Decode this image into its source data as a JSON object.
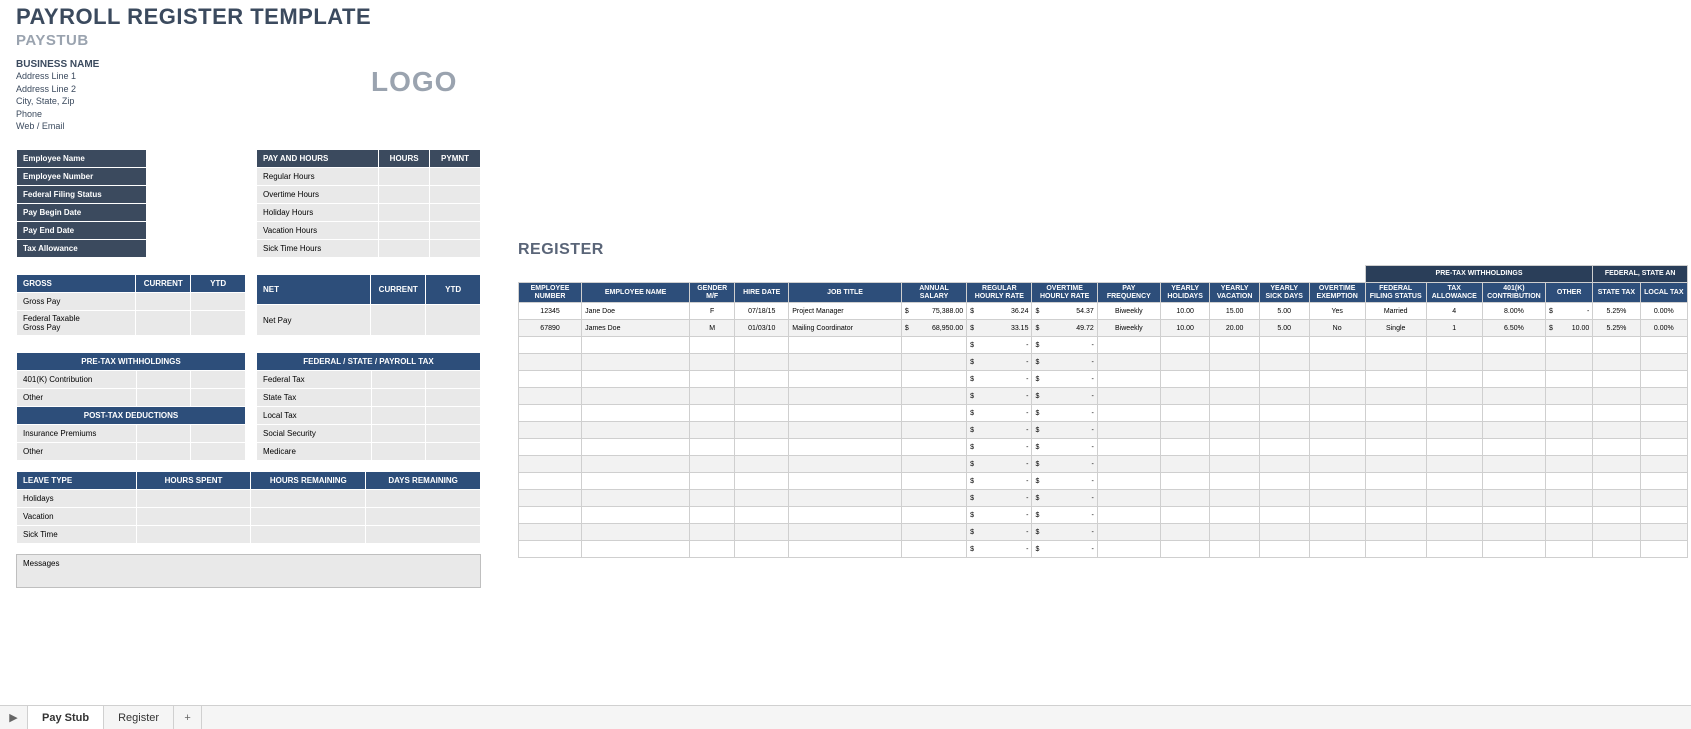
{
  "title_main": "PAYROLL REGISTER TEMPLATE",
  "title_sub": "PAYSTUB",
  "business": {
    "name": "BUSINESS NAME",
    "addr1": "Address Line 1",
    "addr2": "Address Line 2",
    "csz": "City, State, Zip",
    "phone": "Phone",
    "web": "Web / Email"
  },
  "logo": "LOGO",
  "emp_labels": {
    "name": "Employee Name",
    "number": "Employee Number",
    "filing": "Federal Filing Status",
    "begin": "Pay Begin Date",
    "end": "Pay End Date",
    "allow": "Tax Allowance"
  },
  "payhours": {
    "header": "PAY AND HOURS",
    "col_hours": "HOURS",
    "col_pymnt": "PYMNT",
    "rows": [
      "Regular Hours",
      "Overtime Hours",
      "Holiday Hours",
      "Vacation Hours",
      "Sick Time Hours"
    ]
  },
  "gross_section": {
    "gross_hdr": "GROSS",
    "current": "CURRENT",
    "ytd": "YTD",
    "net_hdr": "NET",
    "gross_pay": "Gross Pay",
    "net_pay": "Net Pay",
    "fed_taxable": "Federal Taxable\nGross Pay"
  },
  "pretax": {
    "hdr": "PRE-TAX WITHHOLDINGS",
    "r1": "401(K) Contribution",
    "r2": "Other"
  },
  "fedtax": {
    "hdr": "FEDERAL / STATE / PAYROLL TAX",
    "r1": "Federal Tax",
    "r2": "State Tax",
    "r3": "Local Tax",
    "r4": "Social Security",
    "r5": "Medicare"
  },
  "posttax": {
    "hdr": "POST-TAX DEDUCTIONS",
    "r1": "Insurance Premiums",
    "r2": "Other"
  },
  "leave": {
    "c1": "LEAVE TYPE",
    "c2": "HOURS SPENT",
    "c3": "HOURS REMAINING",
    "c4": "DAYS REMAINING",
    "r1": "Holidays",
    "r2": "Vacation",
    "r3": "Sick Time"
  },
  "messages_label": "Messages",
  "register_title": "REGISTER",
  "super_headers": {
    "pretax": "PRE-TAX WITHHOLDINGS",
    "fed": "FEDERAL, STATE AN"
  },
  "reg_cols": [
    "EMPLOYEE NUMBER",
    "EMPLOYEE NAME",
    "GENDER M/F",
    "HIRE DATE",
    "JOB TITLE",
    "ANNUAL SALARY",
    "REGULAR HOURLY RATE",
    "OVERTIME HOURLY RATE",
    "PAY FREQUENCY",
    "YEARLY HOLIDAYS",
    "YEARLY VACATION",
    "YEARLY SICK DAYS",
    "OVERTIME EXEMPTION",
    "FEDERAL FILING STATUS",
    "TAX ALLOWANCE",
    "401(K) CONTRIBUTION",
    "OTHER",
    "STATE TAX",
    "LOCAL TAX"
  ],
  "reg_col_widths": [
    56,
    96,
    40,
    48,
    100,
    58,
    58,
    58,
    56,
    44,
    44,
    44,
    50,
    54,
    50,
    56,
    42,
    42,
    42
  ],
  "reg_rows": [
    {
      "num": "12345",
      "name": "Jane Doe",
      "gender": "F",
      "hire": "07/18/15",
      "title": "Project Manager",
      "salary": "75,388.00",
      "reg": "36.24",
      "ot": "54.37",
      "freq": "Biweekly",
      "hol": "10.00",
      "vac": "15.00",
      "sick": "5.00",
      "exempt": "Yes",
      "filing": "Married",
      "allow": "4",
      "k401": "8.00%",
      "other": "-",
      "stax": "5.25%",
      "ltax": "0.00%"
    },
    {
      "num": "67890",
      "name": "James Doe",
      "gender": "M",
      "hire": "01/03/10",
      "title": "Mailing Coordinator",
      "salary": "68,950.00",
      "reg": "33.15",
      "ot": "49.72",
      "freq": "Biweekly",
      "hol": "10.00",
      "vac": "20.00",
      "sick": "5.00",
      "exempt": "No",
      "filing": "Single",
      "allow": "1",
      "k401": "6.50%",
      "other": "10.00",
      "stax": "5.25%",
      "ltax": "0.00%"
    }
  ],
  "empty_row_count": 13,
  "sheet_tabs": {
    "t1": "Pay Stub",
    "t2": "Register",
    "plus": "+",
    "nav": "▶"
  },
  "colors": {
    "hdr_dark": "#3b4a5e",
    "hdr_mid": "#2d4e7a",
    "cell_lgt": "#e9e9e9",
    "grey_text": "#9aa3af"
  }
}
